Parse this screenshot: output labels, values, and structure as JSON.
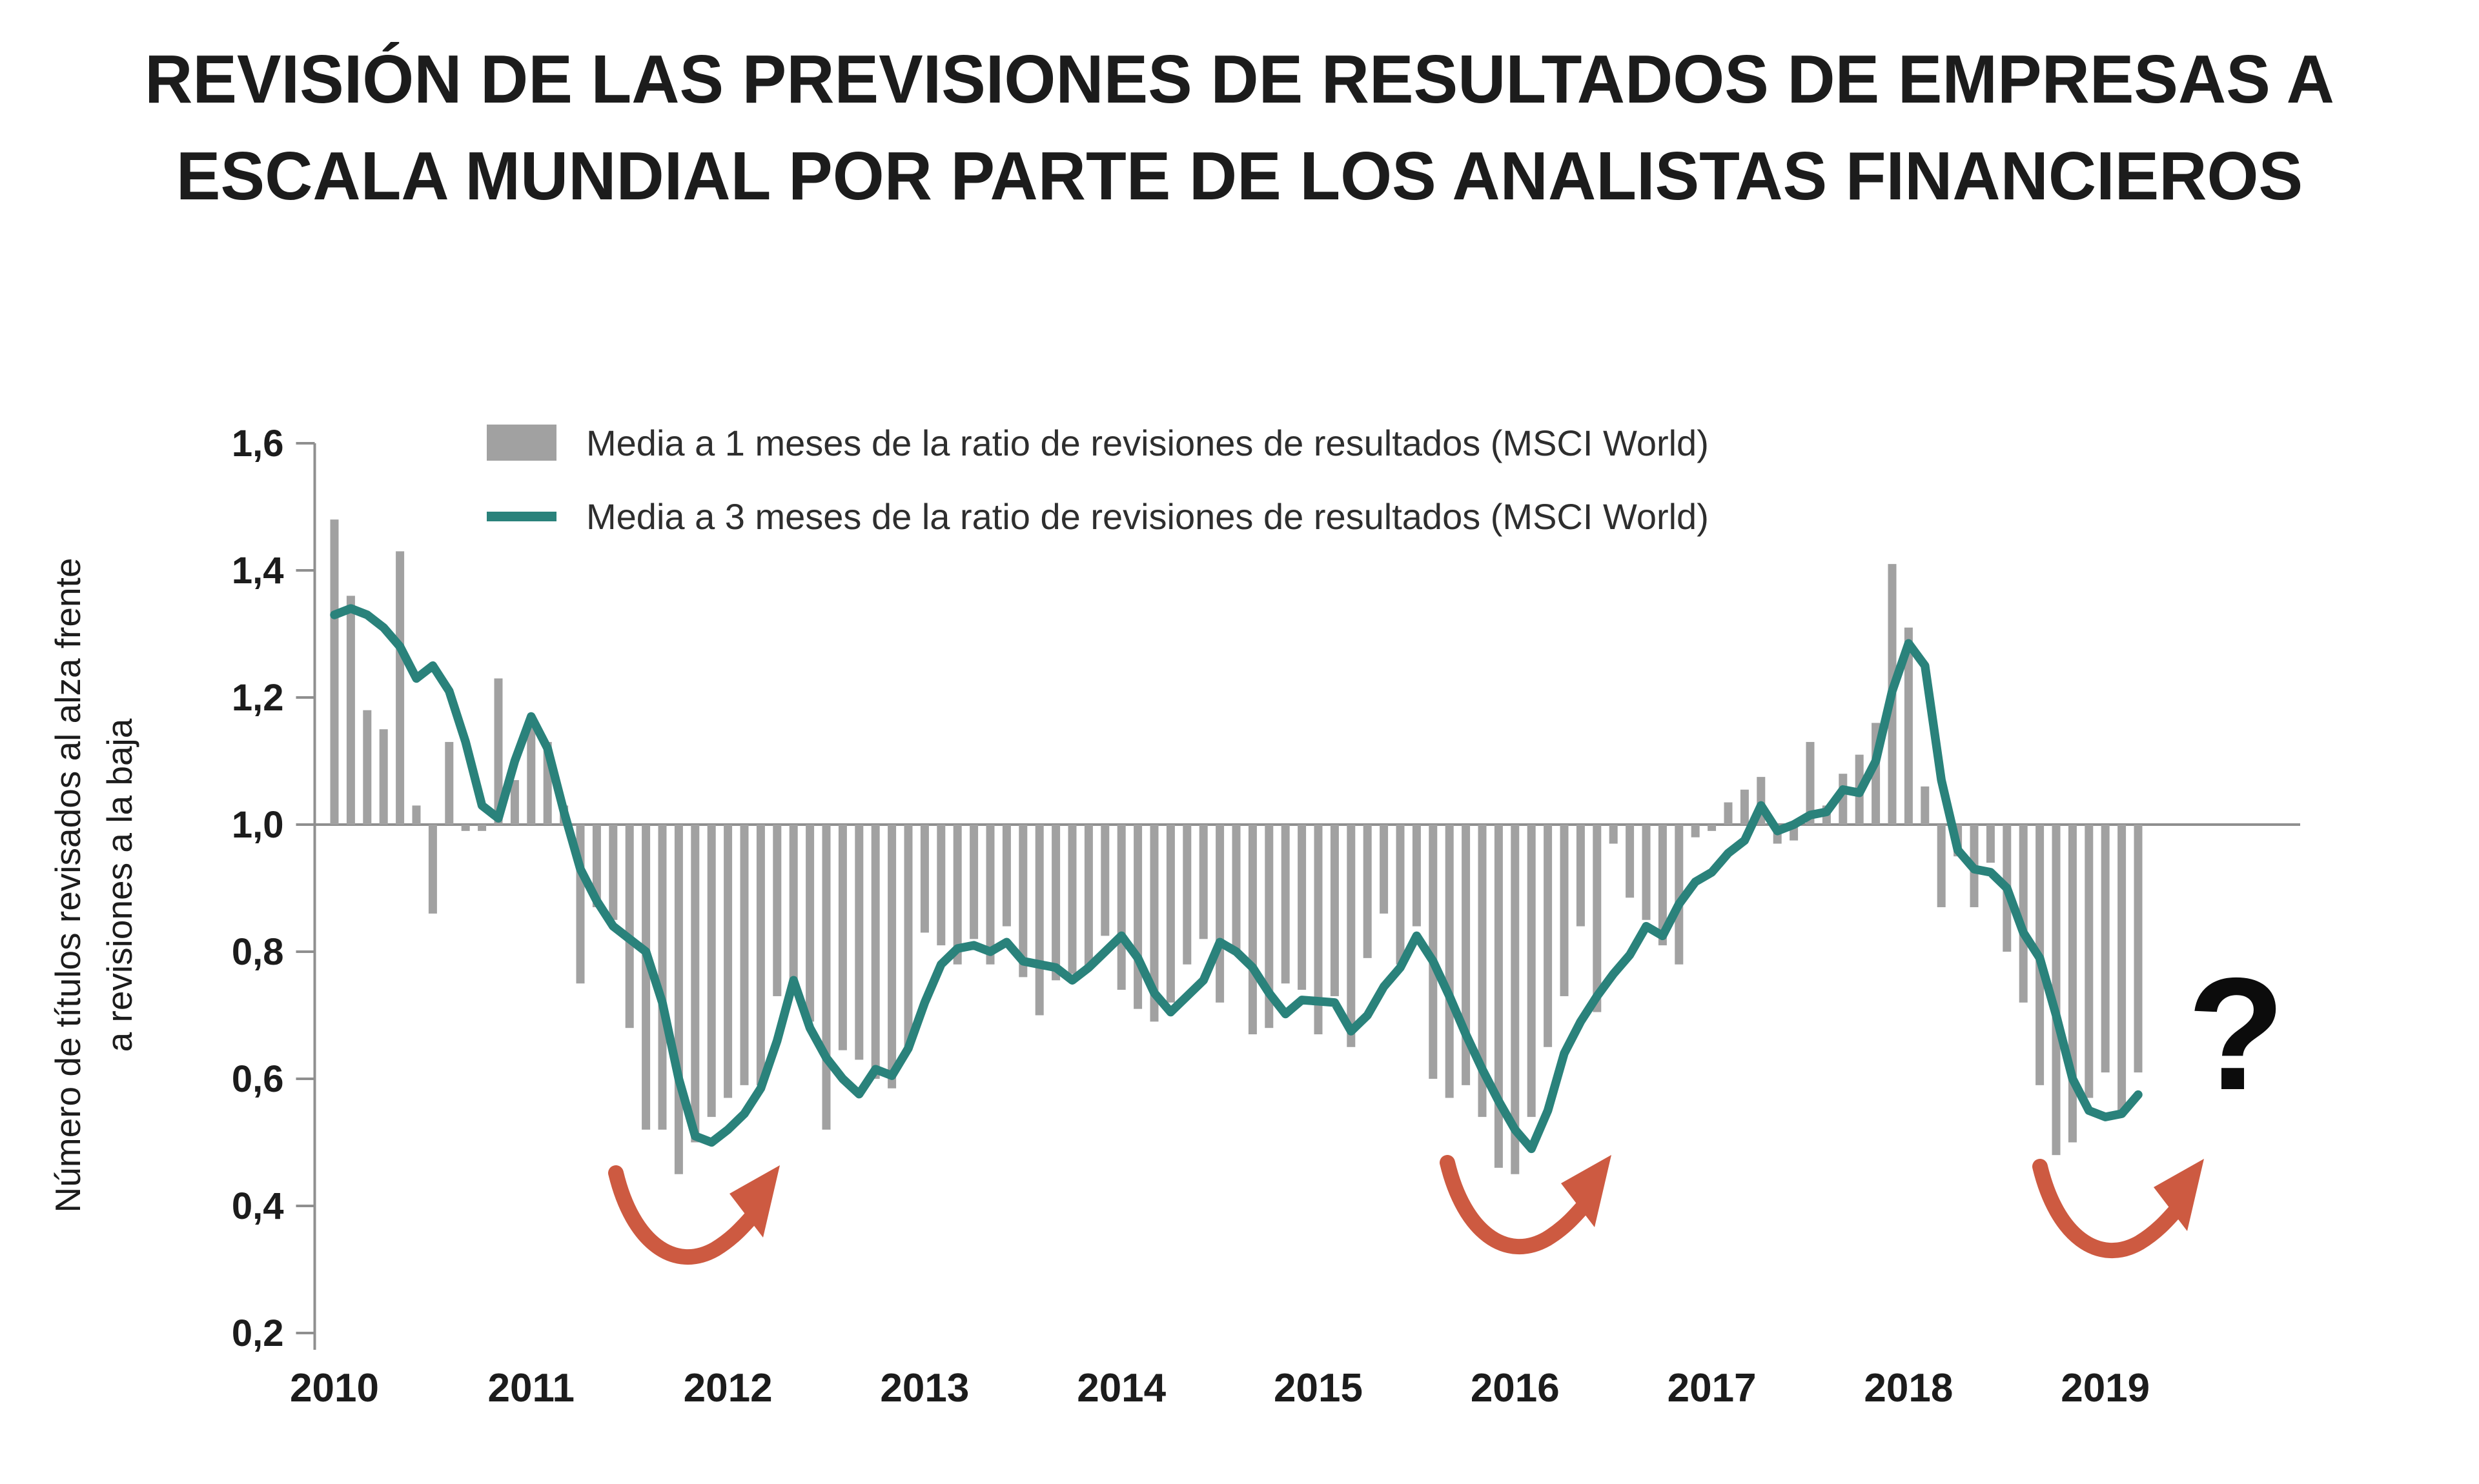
{
  "title": {
    "line1": "REVISIÓN DE LAS PREVISIONES DE RESULTADOS DE EMPRESAS A",
    "line2": "ESCALA MUNDIAL POR PARTE DE LOS ANALISTAS FINANCIEROS"
  },
  "y_axis_title": {
    "line1": "Número de títulos revisados al alza frente",
    "line2": "a revisiones a la baja"
  },
  "legend": {
    "bar_label": "Media a 1 meses de la ratio de revisiones de resultados (MSCI World)",
    "line_label": "Media a 3 meses de la ratio de revisiones de resultados (MSCI World)"
  },
  "annotations": {
    "question_mark": "?",
    "arrows": [
      {
        "meaning": "expected-upturn",
        "near_x": "2011-12"
      },
      {
        "meaning": "expected-upturn",
        "near_x": "2016-01"
      },
      {
        "meaning": "expected-upturn",
        "near_x": "2019-02"
      }
    ]
  },
  "colors": {
    "bar": "#a1a1a1",
    "line": "#2a827b",
    "axis": "#8f8f8f",
    "arrow": "#cd5a41",
    "text": "#1c1c1c"
  },
  "chart_data": {
    "type": "bar",
    "subtype": "bar+line",
    "title": "REVISIÓN DE LAS PREVISIONES DE RESULTADOS DE EMPRESAS A ESCALA MUNDIAL POR PARTE DE LOS ANALISTAS FINANCIEROS",
    "ylabel": "Número de títulos revisados al alza frente a revisiones a la baja",
    "xlabel": "",
    "x_start_month": "2010-01",
    "x_frequency": "monthly",
    "x_tick_labels": [
      "2010",
      "2011",
      "2012",
      "2013",
      "2014",
      "2015",
      "2016",
      "2017",
      "2018",
      "2019"
    ],
    "y_tick_labels": [
      "1,6",
      "1,4",
      "1,2",
      "1,0",
      "0,8",
      "0,6",
      "0,4",
      "0,2"
    ],
    "y_tick_values": [
      1.6,
      1.4,
      1.2,
      1.0,
      0.8,
      0.6,
      0.4,
      0.2
    ],
    "ylim": [
      0.2,
      1.6
    ],
    "baseline": 1.0,
    "grid": false,
    "legend_position": "top-left-inside",
    "series": [
      {
        "name": "Media a 1 meses de la ratio de revisiones de resultados (MSCI World)",
        "kind": "bar",
        "values": [
          1.48,
          1.36,
          1.18,
          1.15,
          1.43,
          1.03,
          0.86,
          1.13,
          0.99,
          0.99,
          1.23,
          1.07,
          1.17,
          1.13,
          1.03,
          0.75,
          0.87,
          0.85,
          0.68,
          0.52,
          0.52,
          0.45,
          0.5,
          0.54,
          0.57,
          0.59,
          0.59,
          0.73,
          0.75,
          0.69,
          0.52,
          0.645,
          0.63,
          0.6,
          0.585,
          0.65,
          0.83,
          0.81,
          0.78,
          0.82,
          0.78,
          0.84,
          0.76,
          0.7,
          0.755,
          0.765,
          0.775,
          0.825,
          0.74,
          0.71,
          0.69,
          0.72,
          0.78,
          0.82,
          0.72,
          0.8,
          0.67,
          0.68,
          0.75,
          0.74,
          0.67,
          0.73,
          0.65,
          0.79,
          0.86,
          0.78,
          0.84,
          0.6,
          0.57,
          0.59,
          0.54,
          0.46,
          0.45,
          0.54,
          0.65,
          0.73,
          0.84,
          0.705,
          0.97,
          0.885,
          0.85,
          0.81,
          0.78,
          0.98,
          0.99,
          1.035,
          1.055,
          1.075,
          0.97,
          0.975,
          1.13,
          1.03,
          1.08,
          1.11,
          1.16,
          1.41,
          1.31,
          1.06,
          0.87,
          0.95,
          0.87,
          0.94,
          0.8,
          0.72,
          0.59,
          0.48,
          0.5,
          0.57,
          0.61,
          0.55,
          0.61
        ]
      },
      {
        "name": "Media a 3 meses de la ratio de revisiones de resultados (MSCI World)",
        "kind": "line",
        "values": [
          1.33,
          1.34,
          1.33,
          1.31,
          1.28,
          1.23,
          1.25,
          1.21,
          1.13,
          1.03,
          1.01,
          1.1,
          1.17,
          1.12,
          1.02,
          0.93,
          0.88,
          0.84,
          0.82,
          0.8,
          0.72,
          0.6,
          0.51,
          0.5,
          0.52,
          0.545,
          0.585,
          0.66,
          0.755,
          0.68,
          0.633,
          0.6,
          0.576,
          0.615,
          0.605,
          0.648,
          0.72,
          0.78,
          0.805,
          0.81,
          0.8,
          0.815,
          0.785,
          0.78,
          0.775,
          0.755,
          0.775,
          0.8,
          0.825,
          0.79,
          0.735,
          0.705,
          0.73,
          0.755,
          0.815,
          0.8,
          0.775,
          0.735,
          0.702,
          0.724,
          0.722,
          0.72,
          0.675,
          0.7,
          0.745,
          0.775,
          0.825,
          0.785,
          0.73,
          0.67,
          0.615,
          0.565,
          0.52,
          0.49,
          0.55,
          0.64,
          0.69,
          0.73,
          0.765,
          0.795,
          0.84,
          0.825,
          0.875,
          0.91,
          0.925,
          0.955,
          0.975,
          1.03,
          0.99,
          1.0,
          1.015,
          1.02,
          1.055,
          1.05,
          1.1,
          1.21,
          1.285,
          1.25,
          1.07,
          0.96,
          0.93,
          0.925,
          0.9,
          0.83,
          0.79,
          0.7,
          0.6,
          0.55,
          0.54,
          0.545,
          0.575
        ]
      }
    ]
  }
}
